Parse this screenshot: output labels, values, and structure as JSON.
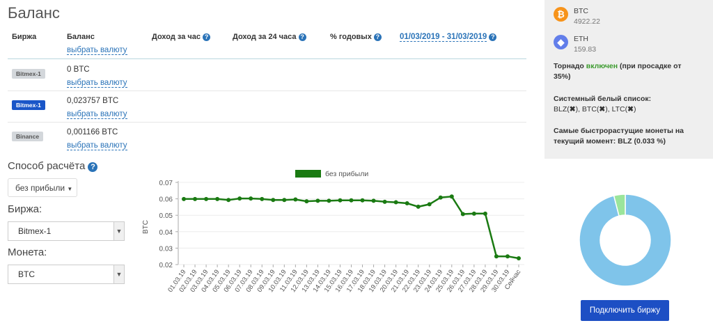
{
  "page_title": "Баланс",
  "table": {
    "headers": {
      "exchange": "Биржа",
      "balance": "Баланс",
      "select_currency": "выбрать валюту",
      "income_hour": "Доход за час",
      "income_24h": "Доход за 24 часа",
      "annual": "% годовых",
      "date_range": "01/03/2019 - 31/03/2019"
    },
    "rows": [
      {
        "exchange": "Bitmex-1",
        "balance": "0 BTC",
        "link": "выбрать валюту",
        "active": false
      },
      {
        "exchange": "Bitmex-1",
        "balance": "0,023757 BTC",
        "link": "выбрать валюту",
        "active": true
      },
      {
        "exchange": "Binance",
        "balance": "0,001166 BTC",
        "link": "выбрать валюту",
        "active": false
      }
    ]
  },
  "controls": {
    "method_label": "Способ расчёта",
    "method_value": "без прибыли",
    "exchange_label": "Биржа:",
    "exchange_value": "Bitmex-1",
    "coin_label": "Монета:",
    "coin_value": "BTC"
  },
  "chart_data": {
    "type": "line",
    "legend": "без прибыли",
    "ylabel": "BTC",
    "ylim": [
      0.02,
      0.07
    ],
    "yticks": [
      "0.07",
      "0.06",
      "0.05",
      "0.04",
      "0.03",
      "0.02"
    ],
    "color": "#1a7a12",
    "categories": [
      "01.03.19",
      "02.03.19",
      "03.03.19",
      "04.03.19",
      "05.03.19",
      "06.03.19",
      "07.03.19",
      "08.03.19",
      "09.03.19",
      "10.03.19",
      "11.03.19",
      "12.03.19",
      "13.03.19",
      "14.03.19",
      "15.03.19",
      "16.03.19",
      "17.03.19",
      "18.03.19",
      "19.03.19",
      "20.03.19",
      "21.03.19",
      "22.03.19",
      "23.03.19",
      "24.03.19",
      "25.03.19",
      "26.03.19",
      "27.03.19",
      "28.03.19",
      "29.03.19",
      "30.03.19",
      "Сейчас"
    ],
    "values": [
      0.0599,
      0.0599,
      0.0599,
      0.0599,
      0.0593,
      0.0602,
      0.0602,
      0.0599,
      0.0593,
      0.0593,
      0.0596,
      0.0585,
      0.0588,
      0.0588,
      0.0591,
      0.0591,
      0.0591,
      0.0588,
      0.0582,
      0.0579,
      0.0573,
      0.0552,
      0.0567,
      0.0608,
      0.0614,
      0.0507,
      0.051,
      0.051,
      0.025,
      0.025,
      0.0238
    ]
  },
  "panel": {
    "coins": [
      {
        "name": "BTC",
        "value": "4922.22",
        "icon": "bitcoin-icon",
        "color": "#f7931a",
        "glyph": "₿"
      },
      {
        "name": "ETH",
        "value": "159.83",
        "icon": "ethereum-icon",
        "color": "#627eea",
        "glyph": "◆"
      }
    ],
    "tornado_prefix": "Торнадо",
    "tornado_status": "включен",
    "tornado_suffix": "(при просадке от 35%)",
    "whitelist_title": "Системный белый список:",
    "whitelist_items": [
      "BLZ",
      "BTC",
      "LTC"
    ],
    "fastest_text": "Самые быстрорастущие монеты на текущий момент: BLZ (0.033 %)"
  },
  "donut": {
    "slices": [
      {
        "fraction": 0.96,
        "color": "#7fc4ea"
      },
      {
        "fraction": 0.04,
        "color": "#9be59b"
      }
    ]
  },
  "connect_button": "Подключить биржу"
}
